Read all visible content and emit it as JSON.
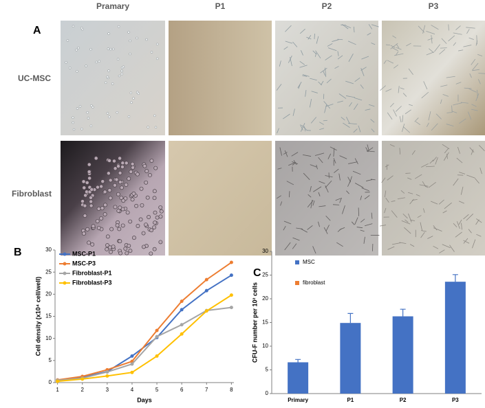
{
  "panel_labels": [
    "A",
    "B",
    "C"
  ],
  "column_headers": [
    "Pramary",
    "P1",
    "P2",
    "P3"
  ],
  "row_labels": [
    "UC-MSC",
    "Fibroblast"
  ],
  "chart_data": [
    {
      "type": "line",
      "ylabel": "Cell density (x10⁴ cell/well)",
      "xlabel": "Days",
      "x": [
        1,
        2,
        3,
        4,
        5,
        6,
        7,
        8
      ],
      "series": [
        {
          "name": "MSC-P1",
          "color": "#4472c4",
          "values": [
            0.5,
            1.2,
            2.5,
            6,
            10.2,
            16.5,
            20.8,
            24.3
          ]
        },
        {
          "name": "MSC-P3",
          "color": "#ed7d31",
          "values": [
            0.6,
            1.4,
            2.9,
            4.8,
            11.8,
            18.4,
            23.3,
            27.2
          ]
        },
        {
          "name": "Fibroblast-P1",
          "color": "#a5a5a5",
          "values": [
            0.5,
            1.0,
            2.4,
            4.2,
            10.4,
            13.1,
            16.3,
            17
          ]
        },
        {
          "name": "Fibroblast-P3",
          "color": "#ffc000",
          "values": [
            0.3,
            0.8,
            1.5,
            2.3,
            6,
            11,
            16.2,
            19.8
          ]
        }
      ],
      "xlim": [
        0.9,
        8.1
      ],
      "xticks": [
        1,
        2,
        3,
        4,
        5,
        6,
        7,
        8
      ],
      "ylim": [
        0,
        30
      ],
      "yticks": [
        0,
        5,
        10,
        15,
        20,
        25,
        30
      ],
      "legend": "upper left"
    },
    {
      "type": "bar",
      "ylabel": "CFU-F number per 10² cells",
      "categories": [
        "Primary",
        "P1",
        "P2",
        "P3"
      ],
      "series": [
        {
          "name": "MSC",
          "color": "#4472c4",
          "values": [
            6.6,
            14.9,
            16.3,
            23.6
          ],
          "errors": [
            0.6,
            2.0,
            1.5,
            1.5
          ]
        },
        {
          "name": "fibroblast",
          "color": "#ed7d31"
        }
      ],
      "ylim": [
        0,
        30
      ],
      "yticks": [
        0,
        5,
        10,
        15,
        20,
        25,
        30
      ],
      "legend": "upper left"
    }
  ]
}
